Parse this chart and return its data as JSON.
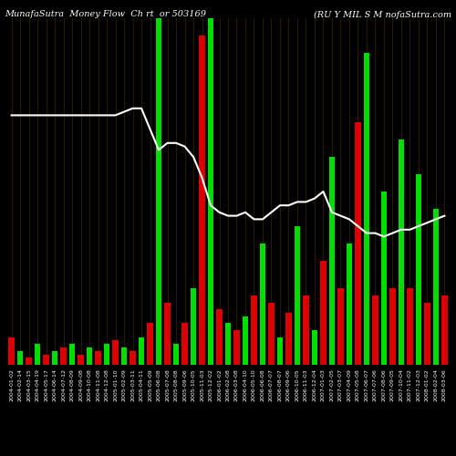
{
  "title_left": "MunafaSutra  Money Flow  Ch rt  or 503169",
  "title_right": "(RU Y MIL S M nofaSutra.com",
  "background_color": "#000000",
  "grid_color": "#3a2800",
  "bar_width": 0.7,
  "categories": [
    "2004-01-02",
    "2004-02-14",
    "2004-03-15",
    "2004-04-19",
    "2004-05-17",
    "2004-06-14",
    "2004-07-12",
    "2004-08-09",
    "2004-09-08",
    "2004-10-08",
    "2004-11-08",
    "2004-12-08",
    "2005-01-10",
    "2005-02-09",
    "2005-03-11",
    "2005-04-11",
    "2005-05-09",
    "2005-06-08",
    "2005-07-08",
    "2005-08-08",
    "2005-09-06",
    "2005-10-05",
    "2005-11-03",
    "2005-12-02",
    "2006-01-02",
    "2006-02-08",
    "2006-03-08",
    "2006-04-10",
    "2006-05-10",
    "2006-06-08",
    "2006-07-07",
    "2006-08-07",
    "2006-09-06",
    "2006-10-05",
    "2006-11-03",
    "2006-12-04",
    "2007-01-03",
    "2007-02-05",
    "2007-03-07",
    "2007-04-09",
    "2007-05-08",
    "2007-06-07",
    "2007-07-06",
    "2007-08-06",
    "2007-09-05",
    "2007-10-04",
    "2007-11-02",
    "2007-12-03",
    "2008-01-02",
    "2008-02-04",
    "2008-03-06"
  ],
  "bar_values": [
    8,
    4,
    2,
    6,
    3,
    4,
    5,
    6,
    3,
    5,
    4,
    6,
    7,
    5,
    4,
    8,
    12,
    100,
    18,
    6,
    12,
    22,
    95,
    100,
    16,
    12,
    10,
    14,
    20,
    35,
    18,
    8,
    15,
    40,
    20,
    10,
    30,
    60,
    22,
    35,
    70,
    90,
    20,
    50,
    22,
    65,
    22,
    55,
    18,
    45,
    20
  ],
  "bar_colors": [
    "r",
    "g",
    "r",
    "g",
    "r",
    "g",
    "r",
    "g",
    "r",
    "g",
    "r",
    "g",
    "r",
    "g",
    "r",
    "g",
    "r",
    "g",
    "r",
    "g",
    "r",
    "g",
    "r",
    "g",
    "r",
    "g",
    "r",
    "g",
    "r",
    "g",
    "r",
    "g",
    "r",
    "g",
    "r",
    "g",
    "r",
    "g",
    "r",
    "g",
    "r",
    "g",
    "r",
    "g",
    "r",
    "g",
    "r",
    "g",
    "r",
    "g",
    "r"
  ],
  "bar_colors_positive": "#00dd00",
  "bar_colors_negative": "#dd0000",
  "line_values": [
    0.72,
    0.72,
    0.72,
    0.72,
    0.72,
    0.72,
    0.72,
    0.72,
    0.72,
    0.72,
    0.72,
    0.72,
    0.72,
    0.73,
    0.74,
    0.74,
    0.68,
    0.62,
    0.64,
    0.64,
    0.63,
    0.6,
    0.54,
    0.46,
    0.44,
    0.43,
    0.43,
    0.44,
    0.42,
    0.42,
    0.44,
    0.46,
    0.46,
    0.47,
    0.47,
    0.48,
    0.5,
    0.44,
    0.43,
    0.42,
    0.4,
    0.38,
    0.38,
    0.37,
    0.38,
    0.39,
    0.39,
    0.4,
    0.41,
    0.42,
    0.43
  ],
  "line_color": "#ffffff",
  "line_width": 1.5,
  "ylim": [
    0,
    100
  ],
  "line_ylim_min": 0.0,
  "line_ylim_max": 1.0,
  "title_fontsize": 7,
  "tick_fontsize": 4.5
}
